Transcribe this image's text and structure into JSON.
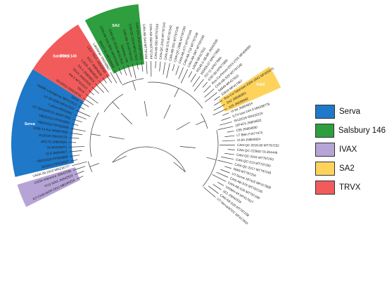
{
  "legend": [
    {
      "label": "Serva",
      "color": "#1f78c8"
    },
    {
      "label": "Salsbury 146",
      "color": "#2e9e3e"
    },
    {
      "label": "IVAX",
      "color": "#b7a4d6"
    },
    {
      "label": "SA2",
      "color": "#fdd35c"
    },
    {
      "label": "TRVX",
      "color": "#f25b5b"
    }
  ],
  "clade_labels": [
    "Serva",
    "Salsbury 146",
    "IVAX",
    "SA2",
    "TRVX"
  ],
  "tip_labels": [
    "ILT-CHAI-NGR-2012 MK045254",
    "TCO IVAX JN542533",
    "USDA reference JN542536",
    "USDA 09-2019 MN216777",
    "SD2016 PP002657",
    "HB201620 PP002659",
    "CL9 JN804827",
    "79 MN335871",
    "ADC76 JN804826",
    "GD2019 ON419276",
    "0206-14 Kor MH937566",
    "HB201612 PP002658",
    "HB201612 PP002858",
    "UY Serva/ATCC MG877862",
    "7-2019 PP002661",
    "LA-19-2005 MF417615",
    "Nobilis Laryngovac MF417812",
    "Serva",
    "SHJ2011 OM103731",
    "TRVX",
    "KM 5 MT311512",
    "TRVX JN542534",
    "GS 4 JN804823",
    "LJ020 JN804825",
    "K317 JN804828",
    "CEO TRVX JN542535",
    "Lab/Strain MK049967",
    "BA/AT-01 MK049966",
    "CAN-AB-S26-3041 MF979265",
    "CAN-QC-2018 MF417810",
    "Salsbury 146",
    "CAN-AB-10 MT797241",
    "CAN-QC-2018 MF417813",
    "CAN-ON-2018 OQ073423",
    "CAN-AB-S44 MT797246",
    "CAN-AB-S50 MT797244",
    "CAN-AB-S65 MT797243",
    "CAN-QC-2018 MT797243",
    "CAN-AB-S73 MT797242",
    "CAN-AB-S51 MT797246",
    "CAN-QC-1996 MT797250",
    "CAN-AB-S77 MT797249",
    "CAN-AB-T18 MT797248",
    "CAN-AB-S87 MT797246",
    "14936 MF417811",
    "63140-C-08-BR JN542536",
    "193435-07 KP677883",
    "757-11 KP677884",
    "4787-80 KP677885",
    "Rus-Ca-Penza-2013-2701 MF405080",
    "CAN-AB-S20 MT797240",
    "64849 MF417810",
    "32818 MF417807",
    "Rus-Ca-Tatarstan-2009-1843 MF405075",
    "SA2 JN596963",
    "A20 JN596962",
    "VI-94 JN804824",
    "ILTV-Iran-144-3 MN338778",
    "SHJ2019 ON415224",
    "1874C5 JN804822",
    "C55 JN804830",
    "LT Blen FJ477575",
    "VI-94 JN804824",
    "CAN-QC-2016-00 MT797252",
    "CAN-QC-223832 OL354446",
    "CAN-QC-2016 MT797253",
    "CAN-QC-213 MT797250",
    "CAN-QC-2017 MT797249",
    "NW9 MT797254",
    "UT-Serva 1874c5 MF417808",
    "CAN-AB-S75 MT797245",
    "CAN-AB-S26 MT797239",
    "VRIWH-44 MF417817",
    "1E1 JN542533",
    "CAN-AB-S20 MT797238",
    "UT-Serva/ATCC MF417816"
  ]
}
